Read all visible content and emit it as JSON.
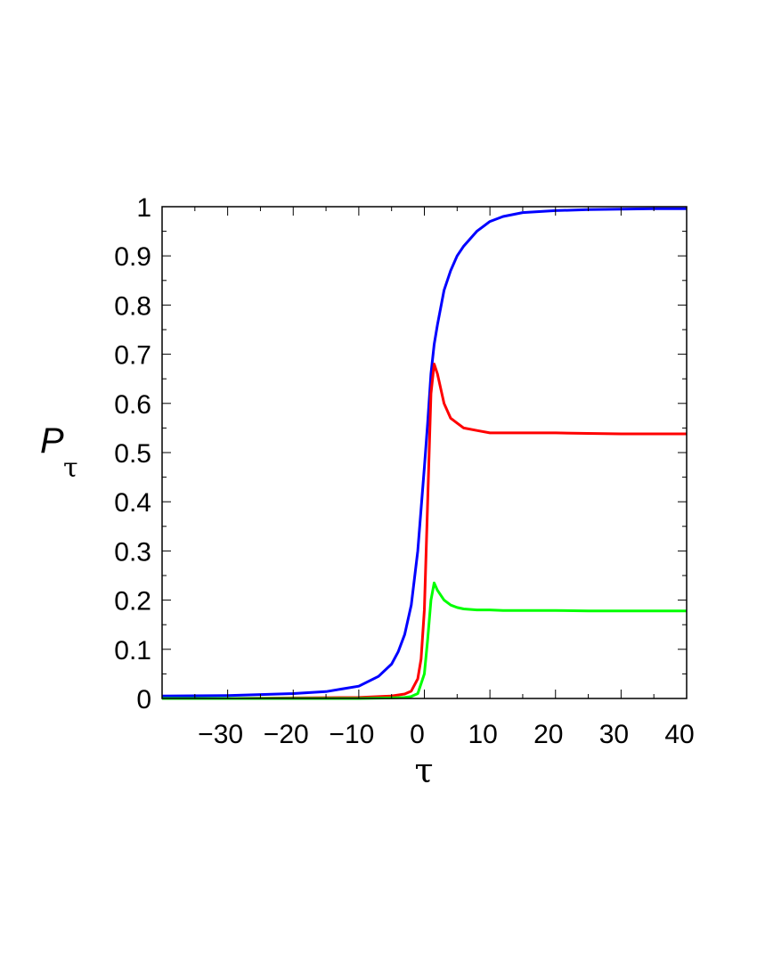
{
  "chart_data": {
    "type": "line",
    "title": "",
    "xlabel": "τ",
    "ylabel": "P",
    "ylabel_subscript": "τ",
    "xlim": [
      -40,
      40
    ],
    "ylim": [
      0,
      1
    ],
    "xticks": [
      -30,
      -20,
      -10,
      0,
      10,
      20,
      30,
      40
    ],
    "xtick_labels": [
      "−30",
      "−20",
      "−10",
      "0",
      "10",
      "20",
      "30",
      "40"
    ],
    "yticks": [
      0,
      0.1,
      0.2,
      0.3,
      0.4,
      0.5,
      0.6,
      0.7,
      0.8,
      0.9,
      1
    ],
    "ytick_labels": [
      "0",
      "0.1",
      "0.2",
      "0.3",
      "0.4",
      "0.5",
      "0.6",
      "0.7",
      "0.8",
      "0.9",
      "1"
    ],
    "grid": false,
    "legend": "none",
    "series": [
      {
        "color": "#0000ff",
        "x": [
          -40,
          -30,
          -20,
          -15,
          -10,
          -7,
          -5,
          -4,
          -3,
          -2,
          -1,
          0,
          0.5,
          1,
          1.5,
          2,
          3,
          4,
          5,
          6,
          8,
          10,
          12,
          15,
          20,
          25,
          30,
          35,
          40
        ],
        "y": [
          0.005,
          0.006,
          0.01,
          0.014,
          0.025,
          0.045,
          0.07,
          0.095,
          0.13,
          0.19,
          0.3,
          0.47,
          0.56,
          0.66,
          0.72,
          0.76,
          0.83,
          0.87,
          0.9,
          0.92,
          0.95,
          0.97,
          0.98,
          0.988,
          0.992,
          0.994,
          0.995,
          0.996,
          0.996
        ]
      },
      {
        "color": "#ff0000",
        "x": [
          -40,
          -30,
          -20,
          -10,
          -5,
          -3,
          -2,
          -1,
          -0.5,
          0,
          0.5,
          1,
          1.5,
          2,
          3,
          4,
          5,
          6,
          8,
          10,
          12,
          15,
          20,
          25,
          30,
          35,
          40
        ],
        "y": [
          0.0,
          0.0,
          0.001,
          0.002,
          0.005,
          0.009,
          0.015,
          0.04,
          0.08,
          0.18,
          0.4,
          0.62,
          0.68,
          0.66,
          0.6,
          0.57,
          0.56,
          0.55,
          0.545,
          0.54,
          0.54,
          0.54,
          0.54,
          0.539,
          0.538,
          0.538,
          0.538
        ]
      },
      {
        "color": "#00ff00",
        "x": [
          -40,
          -30,
          -20,
          -10,
          -5,
          -3,
          -2,
          -1,
          0,
          0.5,
          1,
          1.5,
          2,
          3,
          4,
          5,
          6,
          8,
          10,
          12,
          15,
          20,
          25,
          30,
          35,
          40
        ],
        "y": [
          0.0,
          0.0,
          0.0,
          0.0,
          0.001,
          0.002,
          0.004,
          0.01,
          0.05,
          0.12,
          0.2,
          0.235,
          0.22,
          0.2,
          0.19,
          0.185,
          0.182,
          0.18,
          0.18,
          0.179,
          0.179,
          0.179,
          0.178,
          0.178,
          0.178,
          0.178
        ]
      }
    ]
  }
}
